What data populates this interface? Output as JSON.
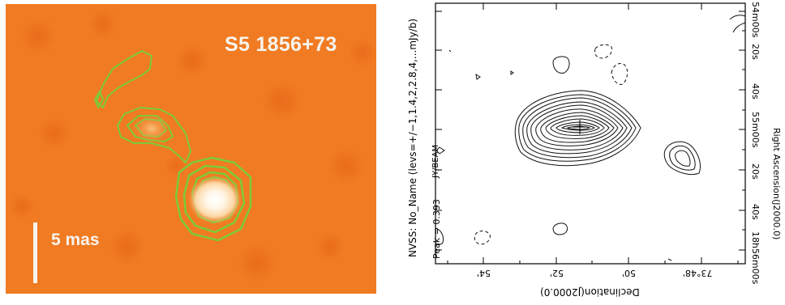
{
  "left_panel": {
    "source_name": "S5 1856+73",
    "scale_bar_label": "5 mas",
    "colors": {
      "background": "#f07b22",
      "contours": "#7ccb3a",
      "core": "#ffffff",
      "label": "#f7f4ee"
    }
  },
  "right_panel": {
    "side_label": "NVSS: No_Name (levs=+/−1,1.4,2,2.8,4,...mJy/b)",
    "peak_label": "Peak =   0.393",
    "beam_label": "JY/BEAM",
    "x_axis_title": "Declination(J2000.0)",
    "x_tick_labels": [
      "54'",
      "52'",
      "50'",
      "73°48'"
    ],
    "y_axis_title": "Right Ascension(J2000.0)",
    "y_tick_labels": [
      "54m00s",
      "20s",
      "40s",
      "55m00s",
      "20s",
      "40s",
      "18h56m00s"
    ],
    "colors": {
      "contours": "#111111",
      "frame": "#000000"
    }
  }
}
